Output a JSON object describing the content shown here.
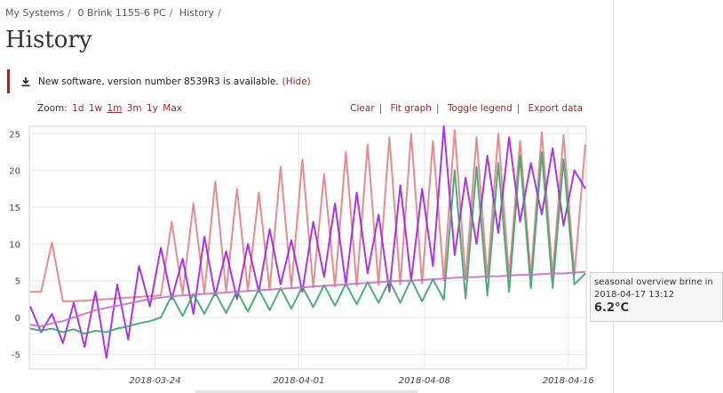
{
  "breadcrumb": [
    "My Systems",
    "0 Brink 1155-6 PC",
    "History"
  ],
  "page_title": "History",
  "notice": {
    "text": "New software, version number 8539R3 is available.",
    "hide_label": "(Hide)"
  },
  "zoom": {
    "label": "Zoom:",
    "options": [
      "1d",
      "1w",
      "1m",
      "3m",
      "1y",
      "Max"
    ],
    "active": "1m"
  },
  "actions": [
    "Clear",
    "Fit graph",
    "Toggle legend",
    "Export data"
  ],
  "tooltip": {
    "title": "seasonal overview brine in",
    "time": "2018-04-17 13:12",
    "value": "6.2°C"
  },
  "colors": {
    "accent": "#8b2c2c",
    "pink": "#e27f84",
    "purple": "#a020e0",
    "green": "#3aa36a",
    "lavender": "#c070c8"
  },
  "chart_data": {
    "type": "line",
    "x_ticks": [
      "2018-03-24",
      "2018-04-01",
      "2018-04-08",
      "2018-04-16"
    ],
    "y_ticks": [
      25,
      20,
      15,
      10,
      5,
      0,
      -5
    ],
    "ylim": [
      -7,
      26
    ],
    "x_range": [
      "2018-03-17",
      "2018-04-17"
    ],
    "grid": true,
    "series": [
      {
        "values": [
          3.5,
          3.5,
          10.2,
          2.2,
          2.2,
          2.3,
          2.4,
          2.5,
          2.6,
          2.7,
          2.8,
          2.9,
          3.0,
          13.0,
          3.2,
          15.5,
          3.3,
          18.5,
          3.5,
          17.5,
          3.6,
          17.0,
          3.8,
          20.5,
          4.0,
          21.5,
          4.1,
          19.5,
          4.2,
          22.5,
          4.3,
          23.5,
          4.4,
          24.5,
          4.5,
          25.0,
          4.6,
          24.0,
          5.0,
          25.5,
          5.2,
          24.5,
          5.4,
          25.0,
          5.5,
          24.0,
          5.6,
          25.2,
          5.7,
          24.8,
          5.8,
          23.5
        ]
      },
      {
        "values": [
          1.5,
          -2.0,
          0.5,
          -3.5,
          2.0,
          -4.0,
          3.5,
          -5.5,
          4.5,
          -3.0,
          7.0,
          1.5,
          9.5,
          2.5,
          8.0,
          0.5,
          11.0,
          3.0,
          9.0,
          2.5,
          10.0,
          3.5,
          12.0,
          4.5,
          10.5,
          3.5,
          13.0,
          5.5,
          15.5,
          4.5,
          17.0,
          6.0,
          14.0,
          3.5,
          18.0,
          5.0,
          17.5,
          7.0,
          26.0,
          8.5,
          19.0,
          10.0,
          22.0,
          11.5,
          24.5,
          13.0,
          21.0,
          14.0,
          23.0,
          12.5,
          20.0,
          17.5
        ]
      },
      {
        "values": [
          -1.5,
          -1.8,
          -1.5,
          -2.0,
          -1.6,
          -2.2,
          -1.8,
          -2.0,
          -1.5,
          -1.2,
          -0.8,
          -0.5,
          0.0,
          3.0,
          0.2,
          3.2,
          0.5,
          3.4,
          0.6,
          3.6,
          0.8,
          3.8,
          1.0,
          4.0,
          1.2,
          4.2,
          1.4,
          4.4,
          1.6,
          4.6,
          1.8,
          4.8,
          2.0,
          5.0,
          2.0,
          5.2,
          2.2,
          5.2,
          2.4,
          20.0,
          2.6,
          20.5,
          3.0,
          21.0,
          3.5,
          22.0,
          4.0,
          22.5,
          4.0,
          21.5,
          4.5,
          6.0
        ]
      },
      {
        "values": [
          -1.0,
          -1.2,
          -0.8,
          -0.5,
          0.0,
          0.5,
          1.0,
          1.3,
          1.6,
          1.9,
          2.2,
          2.5,
          2.7,
          2.9,
          3.0,
          3.1,
          3.2,
          3.3,
          3.4,
          3.5,
          3.6,
          3.7,
          3.8,
          3.9,
          4.0,
          4.1,
          4.2,
          4.3,
          4.4,
          4.5,
          4.6,
          4.7,
          4.8,
          4.9,
          5.0,
          5.0,
          5.1,
          5.2,
          5.3,
          5.4,
          5.5,
          5.5,
          5.6,
          5.6,
          5.7,
          5.8,
          5.8,
          5.9,
          6.0,
          6.0,
          6.1,
          6.2
        ]
      }
    ]
  }
}
